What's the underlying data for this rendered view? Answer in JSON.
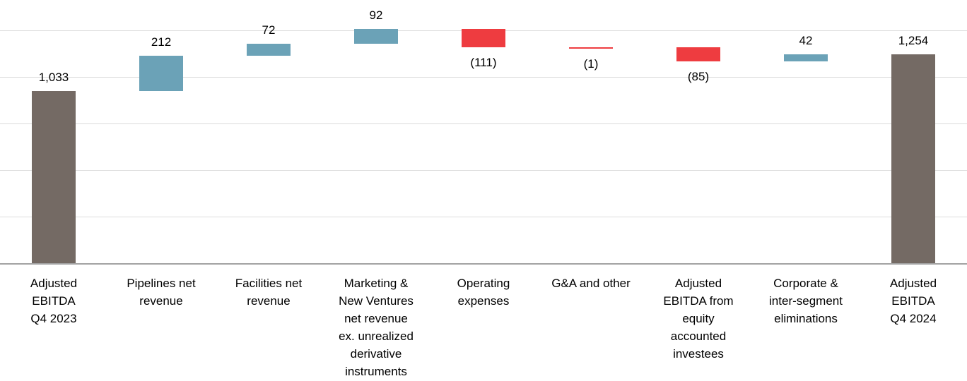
{
  "chart_data": {
    "type": "bar",
    "subtype": "waterfall",
    "title": "",
    "xlabel": "",
    "ylabel": "",
    "categories": [
      "Adjusted\nEBITDA\nQ4 2023",
      "Pipelines net\nrevenue",
      "Facilities net\nrevenue",
      "Marketing &\nNew Ventures\nnet revenue\nex. unrealized\nderivative\ninstruments",
      "Operating\nexpenses",
      "G&A and other",
      "Adjusted\nEBITDA from\nequity\naccounted\ninvestees",
      "Corporate &\ninter-segment\neliminations",
      "Adjusted\nEBITDA\nQ4 2024"
    ],
    "bars": [
      {
        "value": 1033,
        "label": "1,033",
        "kind": "total"
      },
      {
        "value": 212,
        "label": "212",
        "kind": "increase"
      },
      {
        "value": 72,
        "label": "72",
        "kind": "increase"
      },
      {
        "value": 92,
        "label": "92",
        "kind": "increase"
      },
      {
        "value": -111,
        "label": "(111)",
        "kind": "decrease"
      },
      {
        "value": -1,
        "label": "(1)",
        "kind": "decrease"
      },
      {
        "value": -85,
        "label": "(85)",
        "kind": "decrease"
      },
      {
        "value": 42,
        "label": "42",
        "kind": "increase"
      },
      {
        "value": 1254,
        "label": "1,254",
        "kind": "total"
      }
    ],
    "running_totals": [
      1033,
      1245,
      1317,
      1409,
      1298,
      1297,
      1212,
      1254,
      1254
    ],
    "ylim": [
      0,
      1582
    ],
    "gridline_values": [
      280,
      560,
      840,
      1120,
      1400
    ],
    "y_axis_labels_shown": false,
    "legend": false,
    "colors": {
      "total": "#746a64",
      "increase": "#6ba2b7",
      "decrease": "#ee3c40",
      "gridline": "#dcdcdc",
      "axis_line": "#a3a3a3",
      "label_text": "#000000",
      "background": "#ffffff"
    }
  }
}
